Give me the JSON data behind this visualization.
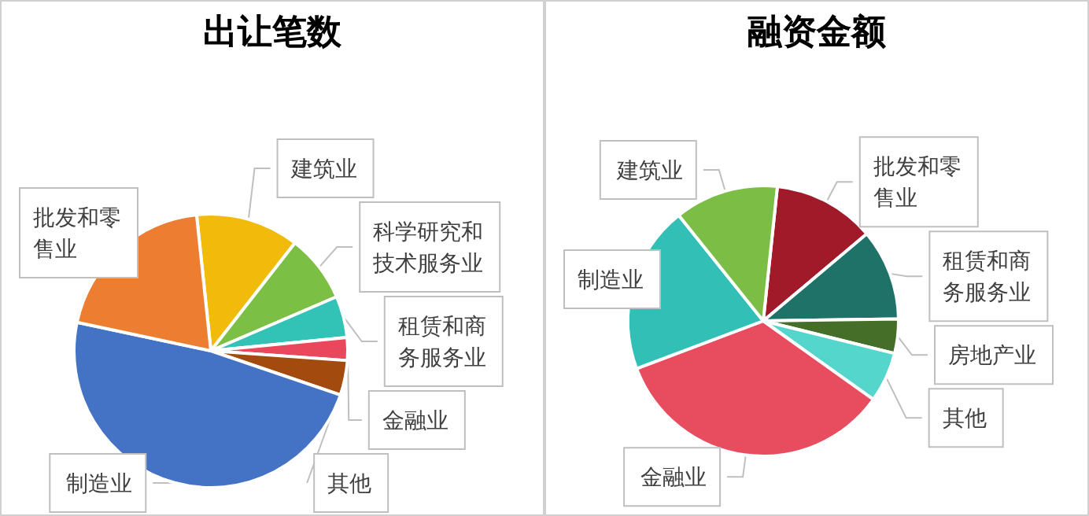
{
  "chart_data": [
    {
      "type": "pie",
      "title": "出让笔数",
      "legend": false,
      "categories": [
        "建筑业",
        "科学研究和技术服务业",
        "租赁和商务服务业",
        "金融业",
        "其他",
        "制造业",
        "批发和零售业"
      ],
      "values": [
        12.2,
        8.0,
        4.9,
        2.7,
        4.1,
        48.1,
        20.0
      ],
      "colors": [
        "#f2bb0b",
        "#7bbf44",
        "#33c3b6",
        "#e8475c",
        "#a34a0f",
        "#4472c4",
        "#ed7d31"
      ]
    },
    {
      "type": "pie",
      "title": "融资金额",
      "legend": false,
      "categories": [
        "批发和零售业",
        "租赁和商务服务业",
        "房地产业",
        "其他",
        "金融业",
        "制造业",
        "建筑业"
      ],
      "values": [
        12.2,
        10.9,
        4.1,
        6.0,
        34.4,
        20.0,
        12.4
      ],
      "colors": [
        "#a01a2a",
        "#1e7268",
        "#456e28",
        "#55d6cc",
        "#e84c5f",
        "#32bfb5",
        "#7bbd45"
      ]
    }
  ]
}
